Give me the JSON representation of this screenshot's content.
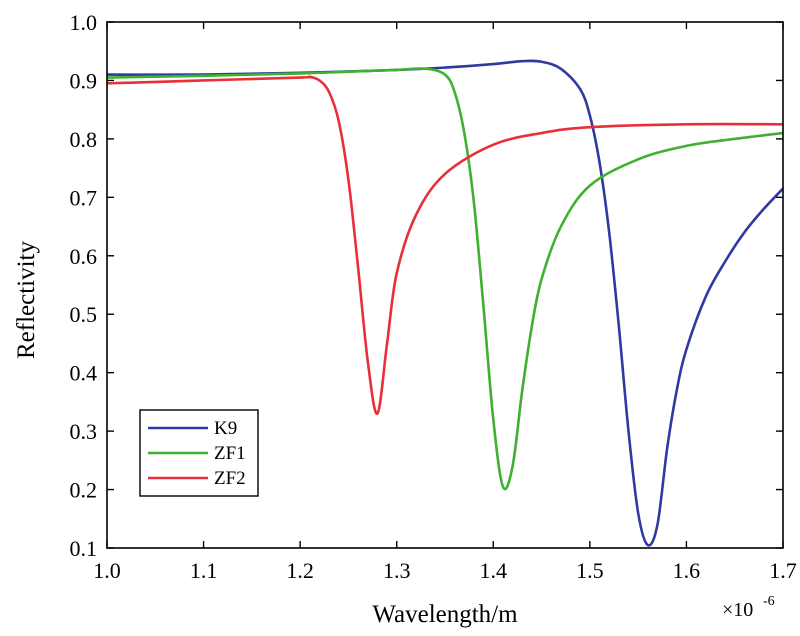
{
  "chart_data": {
    "type": "line",
    "xlabel": "Wavelength/m",
    "ylabel": "Reflectivity",
    "x_exponent_label": "×10",
    "x_exponent_power": "-6",
    "xlim": [
      1.0,
      1.7
    ],
    "ylim": [
      0.1,
      1.0
    ],
    "xticks": [
      "1.0",
      "1.1",
      "1.2",
      "1.3",
      "1.4",
      "1.5",
      "1.6",
      "1.7"
    ],
    "yticks": [
      "0.1",
      "0.2",
      "0.3",
      "0.4",
      "0.5",
      "0.6",
      "0.7",
      "0.8",
      "0.9",
      "1.0"
    ],
    "grid": false,
    "legend_position": "bottom-left",
    "series": [
      {
        "name": "K9",
        "color": "#2e3aa0",
        "x": [
          1.0,
          1.1,
          1.2,
          1.3,
          1.35,
          1.4,
          1.43,
          1.45,
          1.47,
          1.49,
          1.5,
          1.51,
          1.52,
          1.53,
          1.54,
          1.55,
          1.56,
          1.57,
          1.58,
          1.59,
          1.6,
          1.62,
          1.64,
          1.66,
          1.68,
          1.7
        ],
        "y": [
          0.91,
          0.91,
          0.913,
          0.918,
          0.922,
          0.928,
          0.933,
          0.932,
          0.92,
          0.885,
          0.84,
          0.76,
          0.64,
          0.48,
          0.3,
          0.16,
          0.105,
          0.14,
          0.27,
          0.37,
          0.44,
          0.53,
          0.59,
          0.64,
          0.68,
          0.715
        ]
      },
      {
        "name": "ZF1",
        "color": "#3fb030",
        "x": [
          1.0,
          1.1,
          1.2,
          1.25,
          1.3,
          1.33,
          1.35,
          1.36,
          1.37,
          1.38,
          1.39,
          1.4,
          1.41,
          1.42,
          1.43,
          1.44,
          1.45,
          1.47,
          1.5,
          1.55,
          1.6,
          1.65,
          1.7
        ],
        "y": [
          0.905,
          0.908,
          0.912,
          0.915,
          0.918,
          0.92,
          0.91,
          0.88,
          0.81,
          0.69,
          0.51,
          0.32,
          0.205,
          0.24,
          0.37,
          0.48,
          0.56,
          0.65,
          0.72,
          0.765,
          0.788,
          0.8,
          0.81
        ]
      },
      {
        "name": "ZF2",
        "color": "#e8303a",
        "x": [
          1.0,
          1.1,
          1.2,
          1.21,
          1.22,
          1.23,
          1.24,
          1.25,
          1.26,
          1.27,
          1.28,
          1.29,
          1.3,
          1.32,
          1.35,
          1.4,
          1.45,
          1.5,
          1.6,
          1.7
        ],
        "y": [
          0.895,
          0.9,
          0.905,
          0.906,
          0.9,
          0.88,
          0.83,
          0.73,
          0.58,
          0.42,
          0.33,
          0.45,
          0.57,
          0.67,
          0.74,
          0.79,
          0.81,
          0.82,
          0.825,
          0.825
        ]
      }
    ]
  }
}
